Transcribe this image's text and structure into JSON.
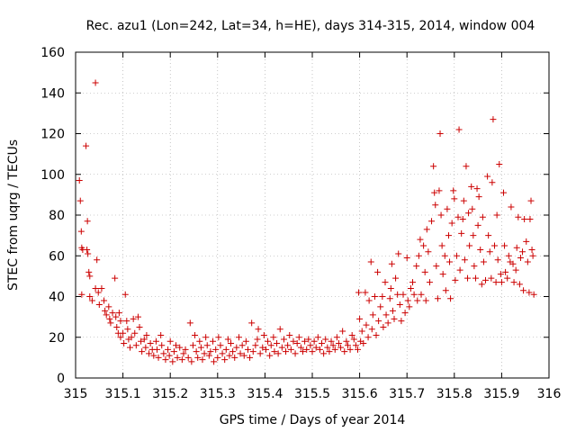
{
  "chart_data": {
    "type": "scatter",
    "title": "Rec. azu1 (Lon=242, Lat=34, h=HE), days 314-315, 2014, window 004",
    "xlabel": "GPS time / Days of year 2014",
    "ylabel": "STEC from uqrg / TECUs",
    "xlim": [
      315,
      316
    ],
    "ylim": [
      0,
      160
    ],
    "xticks": [
      315,
      315.1,
      315.2,
      315.3,
      315.4,
      315.5,
      315.6,
      315.7,
      315.8,
      315.9,
      316
    ],
    "xtick_labels": [
      "315",
      "315.1",
      "315.2",
      "315.3",
      "315.4",
      "315.5",
      "315.6",
      "315.7",
      "315.8",
      "315.9",
      "316"
    ],
    "yticks": [
      0,
      20,
      40,
      60,
      80,
      100,
      120,
      140,
      160
    ],
    "ytick_labels": [
      "0",
      "20",
      "40",
      "60",
      "80",
      "100",
      "120",
      "140",
      "160"
    ],
    "grid": true,
    "marker": "+",
    "color": "#cc0000",
    "points": [
      [
        315.008,
        97
      ],
      [
        315.01,
        87
      ],
      [
        315.012,
        72
      ],
      [
        315.013,
        64
      ],
      [
        315.015,
        63
      ],
      [
        315.013,
        41
      ],
      [
        315.022,
        114
      ],
      [
        315.025,
        77
      ],
      [
        315.024,
        63
      ],
      [
        315.026,
        61
      ],
      [
        315.028,
        52
      ],
      [
        315.03,
        50
      ],
      [
        315.03,
        40
      ],
      [
        315.035,
        38
      ],
      [
        315.042,
        145
      ],
      [
        315.045,
        58
      ],
      [
        315.042,
        44
      ],
      [
        315.048,
        42
      ],
      [
        315.05,
        36
      ],
      [
        315.055,
        44
      ],
      [
        315.06,
        38
      ],
      [
        315.062,
        33
      ],
      [
        315.065,
        31
      ],
      [
        315.07,
        35
      ],
      [
        315.072,
        29
      ],
      [
        315.074,
        27
      ],
      [
        315.078,
        32
      ],
      [
        315.083,
        49
      ],
      [
        315.085,
        30
      ],
      [
        315.087,
        25
      ],
      [
        315.09,
        22
      ],
      [
        315.092,
        32
      ],
      [
        315.095,
        28
      ],
      [
        315.095,
        20
      ],
      [
        315.1,
        22
      ],
      [
        315.102,
        17
      ],
      [
        315.105,
        41
      ],
      [
        315.108,
        28
      ],
      [
        315.11,
        24
      ],
      [
        315.112,
        19
      ],
      [
        315.115,
        15
      ],
      [
        315.118,
        20
      ],
      [
        315.122,
        29
      ],
      [
        315.125,
        22
      ],
      [
        315.128,
        16
      ],
      [
        315.132,
        30
      ],
      [
        315.135,
        25
      ],
      [
        315.138,
        18
      ],
      [
        315.14,
        13
      ],
      [
        315.145,
        19
      ],
      [
        315.148,
        15
      ],
      [
        315.15,
        21
      ],
      [
        315.155,
        12
      ],
      [
        315.158,
        17
      ],
      [
        315.162,
        14
      ],
      [
        315.165,
        11
      ],
      [
        315.17,
        18
      ],
      [
        315.172,
        14
      ],
      [
        315.175,
        10
      ],
      [
        315.18,
        21
      ],
      [
        315.182,
        16
      ],
      [
        315.186,
        12
      ],
      [
        315.19,
        9
      ],
      [
        315.195,
        14
      ],
      [
        315.198,
        11
      ],
      [
        315.2,
        18
      ],
      [
        315.205,
        8
      ],
      [
        315.208,
        13
      ],
      [
        315.212,
        16
      ],
      [
        315.215,
        10
      ],
      [
        315.22,
        15
      ],
      [
        315.225,
        9
      ],
      [
        315.228,
        12
      ],
      [
        315.232,
        14
      ],
      [
        315.238,
        10
      ],
      [
        315.242,
        27
      ],
      [
        315.245,
        8
      ],
      [
        315.248,
        16
      ],
      [
        315.252,
        21
      ],
      [
        315.255,
        13
      ],
      [
        315.258,
        10
      ],
      [
        315.262,
        18
      ],
      [
        315.265,
        15
      ],
      [
        315.268,
        9
      ],
      [
        315.272,
        12
      ],
      [
        315.275,
        20
      ],
      [
        315.278,
        16
      ],
      [
        315.282,
        11
      ],
      [
        315.285,
        13
      ],
      [
        315.29,
        18
      ],
      [
        315.292,
        8
      ],
      [
        315.296,
        14
      ],
      [
        315.3,
        10
      ],
      [
        315.302,
        20
      ],
      [
        315.306,
        16
      ],
      [
        315.31,
        12
      ],
      [
        315.315,
        9
      ],
      [
        315.318,
        14
      ],
      [
        315.322,
        19
      ],
      [
        315.325,
        11
      ],
      [
        315.328,
        17
      ],
      [
        315.332,
        13
      ],
      [
        315.336,
        10
      ],
      [
        315.34,
        15
      ],
      [
        315.345,
        20
      ],
      [
        315.348,
        12
      ],
      [
        315.352,
        16
      ],
      [
        315.356,
        11
      ],
      [
        315.36,
        18
      ],
      [
        315.364,
        14
      ],
      [
        315.368,
        10
      ],
      [
        315.372,
        27
      ],
      [
        315.375,
        13
      ],
      [
        315.38,
        16
      ],
      [
        315.384,
        19
      ],
      [
        315.386,
        24
      ],
      [
        315.39,
        12
      ],
      [
        315.395,
        15
      ],
      [
        315.398,
        21
      ],
      [
        315.402,
        14
      ],
      [
        315.406,
        18
      ],
      [
        315.41,
        11
      ],
      [
        315.413,
        16
      ],
      [
        315.418,
        20
      ],
      [
        315.42,
        13
      ],
      [
        315.425,
        17
      ],
      [
        315.428,
        12
      ],
      [
        315.432,
        24
      ],
      [
        315.436,
        15
      ],
      [
        315.44,
        19
      ],
      [
        315.444,
        13
      ],
      [
        315.448,
        16
      ],
      [
        315.452,
        21
      ],
      [
        315.455,
        14
      ],
      [
        315.46,
        18
      ],
      [
        315.464,
        12
      ],
      [
        315.468,
        17
      ],
      [
        315.472,
        20
      ],
      [
        315.476,
        15
      ],
      [
        315.48,
        13
      ],
      [
        315.484,
        18
      ],
      [
        315.488,
        14
      ],
      [
        315.492,
        19
      ],
      [
        315.496,
        16
      ],
      [
        315.5,
        13
      ],
      [
        315.504,
        18
      ],
      [
        315.508,
        15
      ],
      [
        315.512,
        20
      ],
      [
        315.516,
        14
      ],
      [
        315.52,
        17
      ],
      [
        315.524,
        12
      ],
      [
        315.528,
        19
      ],
      [
        315.532,
        15
      ],
      [
        315.536,
        13
      ],
      [
        315.54,
        18
      ],
      [
        315.544,
        16
      ],
      [
        315.548,
        14
      ],
      [
        315.552,
        20
      ],
      [
        315.556,
        17
      ],
      [
        315.56,
        15
      ],
      [
        315.564,
        23
      ],
      [
        315.568,
        13
      ],
      [
        315.572,
        18
      ],
      [
        315.575,
        16
      ],
      [
        315.58,
        14
      ],
      [
        315.584,
        21
      ],
      [
        315.588,
        19
      ],
      [
        315.592,
        16
      ],
      [
        315.596,
        14
      ],
      [
        315.598,
        42
      ],
      [
        315.6,
        29
      ],
      [
        315.602,
        18
      ],
      [
        315.605,
        23
      ],
      [
        315.608,
        17
      ],
      [
        315.612,
        42
      ],
      [
        315.614,
        26
      ],
      [
        315.618,
        20
      ],
      [
        315.62,
        38
      ],
      [
        315.624,
        57
      ],
      [
        315.626,
        24
      ],
      [
        315.628,
        31
      ],
      [
        315.632,
        40
      ],
      [
        315.635,
        21
      ],
      [
        315.638,
        52
      ],
      [
        315.64,
        28
      ],
      [
        315.644,
        35
      ],
      [
        315.648,
        40
      ],
      [
        315.65,
        25
      ],
      [
        315.654,
        47
      ],
      [
        315.656,
        31
      ],
      [
        315.66,
        27
      ],
      [
        315.664,
        39
      ],
      [
        315.666,
        44
      ],
      [
        315.668,
        56
      ],
      [
        315.67,
        33
      ],
      [
        315.673,
        29
      ],
      [
        315.676,
        49
      ],
      [
        315.68,
        41
      ],
      [
        315.682,
        61
      ],
      [
        315.685,
        36
      ],
      [
        315.688,
        28
      ],
      [
        315.692,
        41
      ],
      [
        315.696,
        32
      ],
      [
        315.7,
        59
      ],
      [
        315.702,
        38
      ],
      [
        315.705,
        35
      ],
      [
        315.708,
        44
      ],
      [
        315.712,
        47
      ],
      [
        315.715,
        41
      ],
      [
        315.72,
        55
      ],
      [
        315.722,
        38
      ],
      [
        315.725,
        60
      ],
      [
        315.728,
        68
      ],
      [
        315.73,
        41
      ],
      [
        315.735,
        65
      ],
      [
        315.738,
        52
      ],
      [
        315.74,
        38
      ],
      [
        315.742,
        73
      ],
      [
        315.745,
        62
      ],
      [
        315.748,
        47
      ],
      [
        315.752,
        77
      ],
      [
        315.756,
        104
      ],
      [
        315.758,
        91
      ],
      [
        315.76,
        85
      ],
      [
        315.762,
        55
      ],
      [
        315.765,
        39
      ],
      [
        315.768,
        92
      ],
      [
        315.77,
        120
      ],
      [
        315.772,
        80
      ],
      [
        315.774,
        65
      ],
      [
        315.776,
        51
      ],
      [
        315.78,
        60
      ],
      [
        315.782,
        43
      ],
      [
        315.785,
        83
      ],
      [
        315.788,
        70
      ],
      [
        315.79,
        57
      ],
      [
        315.792,
        39
      ],
      [
        315.795,
        76
      ],
      [
        315.798,
        92
      ],
      [
        315.8,
        88
      ],
      [
        315.802,
        48
      ],
      [
        315.805,
        60
      ],
      [
        315.808,
        79
      ],
      [
        315.81,
        122
      ],
      [
        315.812,
        53
      ],
      [
        315.815,
        71
      ],
      [
        315.818,
        78
      ],
      [
        315.82,
        87
      ],
      [
        315.822,
        58
      ],
      [
        315.825,
        104
      ],
      [
        315.828,
        49
      ],
      [
        315.83,
        81
      ],
      [
        315.832,
        65
      ],
      [
        315.836,
        94
      ],
      [
        315.838,
        83
      ],
      [
        315.84,
        70
      ],
      [
        315.842,
        55
      ],
      [
        315.845,
        49
      ],
      [
        315.848,
        93
      ],
      [
        315.85,
        75
      ],
      [
        315.852,
        89
      ],
      [
        315.855,
        63
      ],
      [
        315.858,
        46
      ],
      [
        315.86,
        79
      ],
      [
        315.862,
        57
      ],
      [
        315.866,
        48
      ],
      [
        315.87,
        99
      ],
      [
        315.872,
        70
      ],
      [
        315.875,
        62
      ],
      [
        315.878,
        49
      ],
      [
        315.88,
        96
      ],
      [
        315.882,
        127
      ],
      [
        315.885,
        65
      ],
      [
        315.888,
        47
      ],
      [
        315.89,
        80
      ],
      [
        315.892,
        58
      ],
      [
        315.895,
        105
      ],
      [
        315.898,
        51
      ],
      [
        315.9,
        47
      ],
      [
        315.904,
        91
      ],
      [
        315.906,
        65
      ],
      [
        315.908,
        52
      ],
      [
        315.912,
        49
      ],
      [
        315.915,
        60
      ],
      [
        315.918,
        57
      ],
      [
        315.92,
        84
      ],
      [
        315.924,
        56
      ],
      [
        315.926,
        47
      ],
      [
        315.93,
        53
      ],
      [
        315.932,
        64
      ],
      [
        315.935,
        79
      ],
      [
        315.938,
        46
      ],
      [
        315.94,
        59
      ],
      [
        315.944,
        62
      ],
      [
        315.946,
        43
      ],
      [
        315.948,
        78
      ],
      [
        315.952,
        67
      ],
      [
        315.955,
        57
      ],
      [
        315.958,
        42
      ],
      [
        315.96,
        78
      ],
      [
        315.962,
        87
      ],
      [
        315.964,
        63
      ],
      [
        315.966,
        60
      ],
      [
        315.968,
        41
      ]
    ]
  }
}
